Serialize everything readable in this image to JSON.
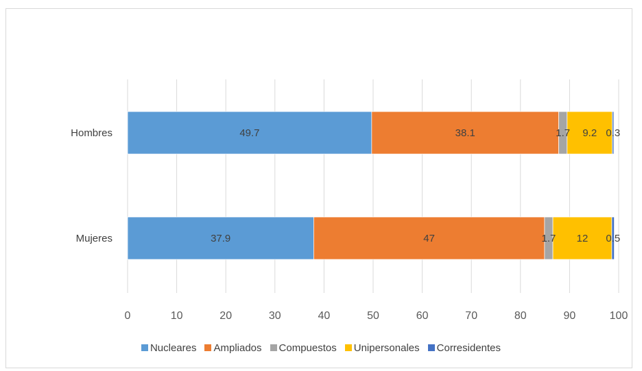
{
  "chart_data": {
    "type": "bar",
    "orientation": "horizontal",
    "stacked": true,
    "categories": [
      "Hombres",
      "Mujeres"
    ],
    "series": [
      {
        "name": "Nucleares",
        "color": "#5b9bd5",
        "values": [
          49.7,
          37.9
        ]
      },
      {
        "name": "Ampliados",
        "color": "#ed7d31",
        "values": [
          38.1,
          47
        ]
      },
      {
        "name": "Compuestos",
        "color": "#a5a5a5",
        "values": [
          1.7,
          1.7
        ]
      },
      {
        "name": "Unipersonales",
        "color": "#ffc000",
        "values": [
          9.2,
          12
        ]
      },
      {
        "name": "Corresidentes",
        "color": "#4472c4",
        "values": [
          0.3,
          0.5
        ]
      }
    ],
    "xlim": [
      0,
      100
    ],
    "xticks": [
      "0",
      "10",
      "20",
      "30",
      "40",
      "50",
      "60",
      "70",
      "80",
      "90",
      "100"
    ],
    "grid": true,
    "legend_position": "bottom"
  }
}
